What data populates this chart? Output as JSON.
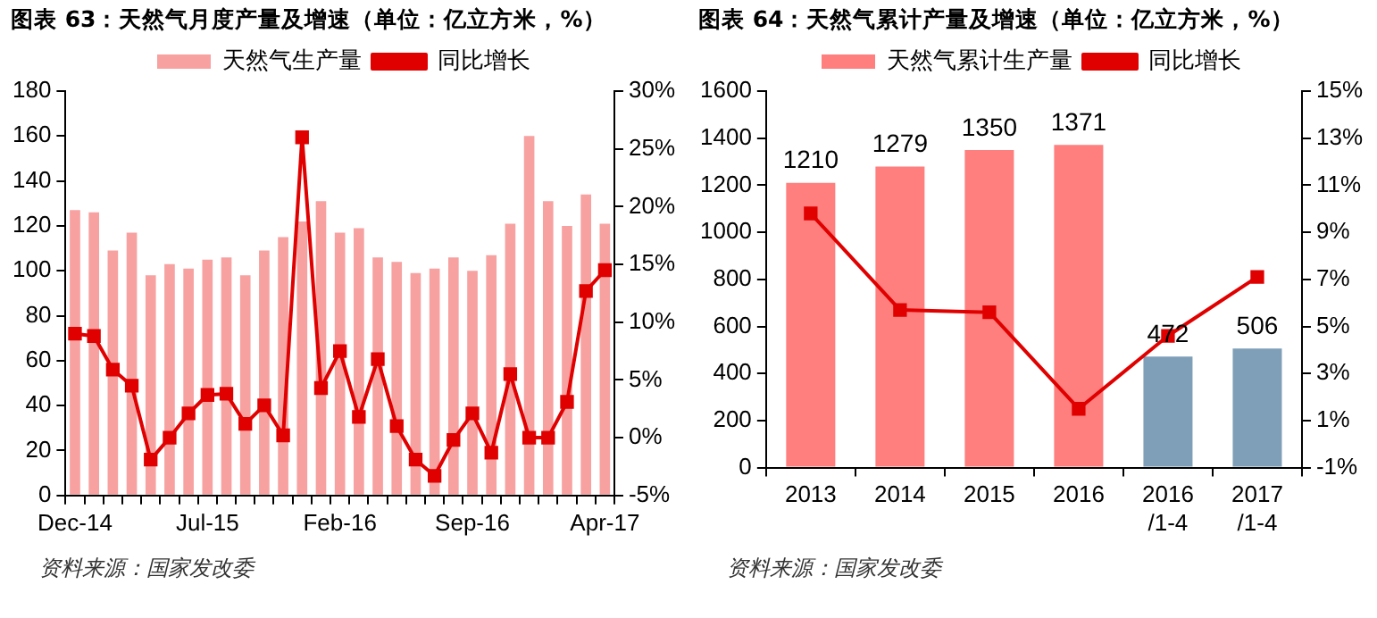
{
  "chart_data": [
    {
      "type": "bar",
      "title": "图表 63：天然气月度产量及增速（单位：亿立方米，%）",
      "categories": [
        "Dec-14",
        null,
        null,
        null,
        null,
        null,
        null,
        "Jul-15",
        null,
        null,
        null,
        null,
        null,
        null,
        "Feb-16",
        null,
        null,
        null,
        null,
        null,
        null,
        "Sep-16",
        null,
        null,
        null,
        null,
        null,
        null,
        "Apr-17"
      ],
      "series": [
        {
          "name": "天然气生产量",
          "color": "#f7a1a1",
          "values": [
            127,
            126,
            109,
            117,
            98,
            103,
            101,
            105,
            106,
            98,
            109,
            115,
            122,
            131,
            117,
            119,
            106,
            104,
            99,
            101,
            106,
            100,
            107,
            121,
            160,
            131,
            120,
            134,
            121
          ]
        },
        {
          "name": "同比增长",
          "type": "line",
          "axis": "y2",
          "color": "#e00000",
          "values": [
            9.0,
            8.8,
            5.9,
            4.5,
            -1.9,
            0,
            2.1,
            3.7,
            3.8,
            1.2,
            2.8,
            0.2,
            26,
            4.3,
            7.5,
            1.8,
            6.8,
            1.0,
            -1.9,
            -3.3,
            -0.2,
            2.1,
            -1.3,
            5.5,
            0,
            0,
            3.1,
            12.7,
            14.5
          ]
        }
      ],
      "ylim": [
        0,
        180
      ],
      "yticks": [
        0,
        20,
        40,
        60,
        80,
        100,
        120,
        140,
        160,
        180
      ],
      "y2lim": [
        -5,
        30
      ],
      "y2ticks": [
        {
          "value": -5,
          "label": "-5%"
        },
        {
          "value": 0,
          "label": "0%"
        },
        {
          "value": 5,
          "label": "5%"
        },
        {
          "value": 10,
          "label": "10%"
        },
        {
          "value": 15,
          "label": "15%"
        },
        {
          "value": 20,
          "label": "20%"
        },
        {
          "value": 25,
          "label": "25%"
        },
        {
          "value": 30,
          "label": "30%"
        }
      ],
      "grid": false,
      "legend": "top",
      "marker": "square",
      "line_style": "solid",
      "annotations": [
        "资料来源：国家发改委"
      ]
    },
    {
      "type": "bar",
      "title": "图表 64：天然气累计产量及增速（单位：亿立方米，%）",
      "categories": [
        "2013",
        "2014",
        "2015",
        "2016",
        "2016\n/1-4",
        "2017\n/1-4"
      ],
      "series": [
        {
          "name": "天然气累计生产量",
          "colors": [
            "#ff7f7f",
            "#ff7f7f",
            "#ff7f7f",
            "#ff7f7f",
            "#7f9fb8",
            "#7f9fb8"
          ],
          "values": [
            1210,
            1279,
            1350,
            1371,
            472,
            506
          ],
          "value_labels": [
            "1210",
            "1279",
            "1350",
            "1371",
            "472",
            "506"
          ]
        },
        {
          "name": "同比增长",
          "type": "line",
          "axis": "y2",
          "color": "#e00000",
          "values": [
            9.8,
            5.7,
            5.6,
            1.5,
            4.6,
            7.1
          ]
        }
      ],
      "ylim": [
        0,
        1600
      ],
      "yticks": [
        0,
        200,
        400,
        600,
        800,
        1000,
        1200,
        1400,
        1600
      ],
      "y2lim": [
        -1,
        15
      ],
      "y2ticks": [
        {
          "value": -1,
          "label": "-1%"
        },
        {
          "value": 1,
          "label": "1%"
        },
        {
          "value": 3,
          "label": "3%"
        },
        {
          "value": 5,
          "label": "5%"
        },
        {
          "value": 7,
          "label": "7%"
        },
        {
          "value": 9,
          "label": "9%"
        },
        {
          "value": 11,
          "label": "11%"
        },
        {
          "value": 13,
          "label": "13%"
        },
        {
          "value": 15,
          "label": "15%"
        }
      ],
      "grid": false,
      "legend": "top",
      "marker": "square",
      "line_style": "solid",
      "annotations": [
        "资料来源：国家发改委"
      ]
    }
  ]
}
